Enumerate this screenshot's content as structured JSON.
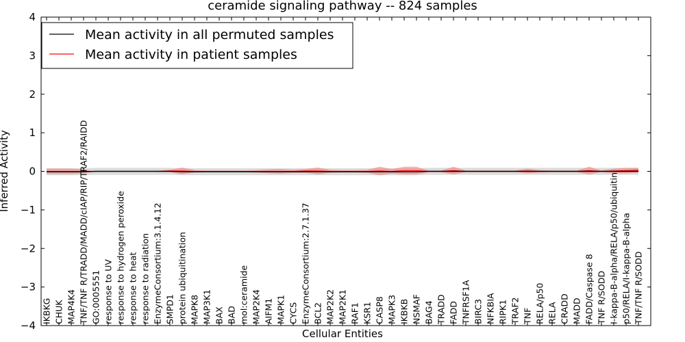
{
  "chart_data": {
    "type": "line",
    "title": "ceramide signaling pathway -- 824 samples",
    "xlabel": "Cellular Entities",
    "ylabel": "Inferred Activity",
    "ylim": [
      -4,
      4
    ],
    "yticks": [
      "−4",
      "−3",
      "−2",
      "−1",
      "0",
      "1",
      "2",
      "3",
      "4"
    ],
    "legend_position": "upper-left",
    "categories": [
      "IKBKG",
      "CHUK",
      "MAP4K4",
      "TNF/TNF R/TRADD/MADD/cIAP/RIP/TRAF2/RAIDD",
      "GO:0005551",
      "response to UV",
      "response to hydrogen peroxide",
      "response to heat",
      "response to radiation",
      "EnzymeConsortium:3.1.4.12",
      "SMPD1",
      "protein ubiquitination",
      "MAPK8",
      "MAP3K1",
      "BAX",
      "BAD",
      "mol:ceramide",
      "MAP2K4",
      "AIFM1",
      "MAPK1",
      "CYCS",
      "EnzymeConsortium:2.7.1.37",
      "BCL2",
      "MAP2K2",
      "MAP2K1",
      "RAF1",
      "KSR1",
      "CASP8",
      "MAPK3",
      "IKBKB",
      "NSMAF",
      "BAG4",
      "TRADD",
      "FADD",
      "TNFRSF1A",
      "BIRC3",
      "NFKBIA",
      "RIPK1",
      "TRAF2",
      "TNF",
      "RELA/p50",
      "RELA",
      "CRADD",
      "MADD",
      "FADD/Caspase 8",
      "TNF R/SODD",
      "I-kappa-B-alpha/RELA/p50/ubiquitin",
      "p50/RELA/I-kappa-B-alpha",
      "TNF/TNF R/SODD"
    ],
    "series": [
      {
        "name": "Mean activity in all permuted samples",
        "color": "#000000",
        "values": [
          -0.01,
          -0.01,
          -0.01,
          -0.01,
          0.0,
          0.0,
          0.0,
          0.0,
          0.0,
          0.0,
          0.0,
          -0.01,
          -0.01,
          -0.01,
          -0.01,
          -0.01,
          -0.01,
          -0.01,
          -0.01,
          -0.01,
          -0.01,
          -0.01,
          -0.01,
          -0.01,
          -0.01,
          -0.01,
          -0.01,
          -0.01,
          -0.01,
          -0.01,
          -0.01,
          0.0,
          0.0,
          0.0,
          0.0,
          0.0,
          0.0,
          0.0,
          0.0,
          0.0,
          0.0,
          0.0,
          0.0,
          0.0,
          0.0,
          0.0,
          0.0,
          0.0,
          0.0
        ],
        "band": 0.09
      },
      {
        "name": "Mean activity in patient samples",
        "color": "#ff0000",
        "band_color": "#f08080",
        "values": [
          0.0,
          0.0,
          0.0,
          0.0,
          0.0,
          0.0,
          0.0,
          0.0,
          0.0,
          0.0,
          0.01,
          0.01,
          0.0,
          0.0,
          0.0,
          0.0,
          0.0,
          0.0,
          0.0,
          0.0,
          0.0,
          0.01,
          0.01,
          0.0,
          0.0,
          0.0,
          0.0,
          0.01,
          0.0,
          0.02,
          0.02,
          0.0,
          0.0,
          0.02,
          0.0,
          0.0,
          0.0,
          0.0,
          0.0,
          0.01,
          0.0,
          0.0,
          0.0,
          0.0,
          0.02,
          0.0,
          0.01,
          0.02,
          0.03
        ],
        "band": [
          0.07,
          0.07,
          0.07,
          0.05,
          0.0,
          0.0,
          0.0,
          0.0,
          0.0,
          0.01,
          0.03,
          0.09,
          0.03,
          0.02,
          0.02,
          0.02,
          0.02,
          0.03,
          0.05,
          0.06,
          0.04,
          0.05,
          0.09,
          0.04,
          0.03,
          0.03,
          0.04,
          0.11,
          0.06,
          0.1,
          0.1,
          0.02,
          0.02,
          0.1,
          0.02,
          0.02,
          0.02,
          0.02,
          0.02,
          0.06,
          0.03,
          0.02,
          0.02,
          0.02,
          0.1,
          0.02,
          0.06,
          0.07,
          0.06
        ]
      }
    ]
  }
}
